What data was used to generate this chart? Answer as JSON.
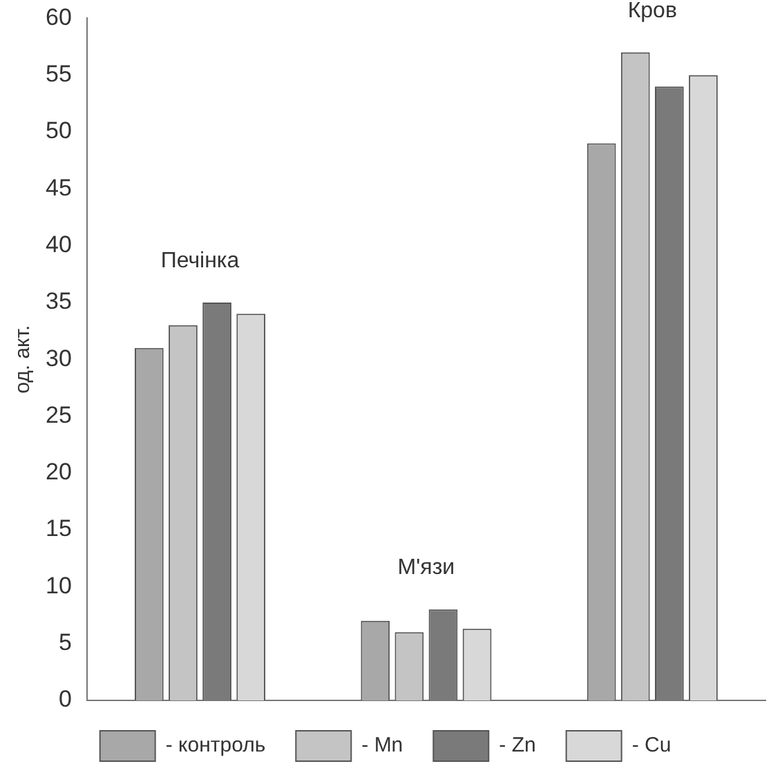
{
  "chart_data": {
    "type": "bar",
    "ylabel": "од. акт.",
    "categories": [
      "Печінка",
      "М'язи",
      "Кров"
    ],
    "series": [
      {
        "name": "- контроль",
        "color": "#a8a8a8",
        "values": [
          31,
          7,
          49
        ]
      },
      {
        "name": "- Mn",
        "color": "#c4c4c4",
        "values": [
          33,
          6,
          57
        ]
      },
      {
        "name": "- Zn",
        "color": "#7a7a7a",
        "values": [
          35,
          8,
          54
        ]
      },
      {
        "name": "- Cu",
        "color": "#d8d8d8",
        "values": [
          34,
          6.3,
          55
        ]
      }
    ],
    "ylim": [
      0,
      60
    ],
    "yticks": [
      0,
      5,
      10,
      15,
      20,
      25,
      30,
      35,
      40,
      45,
      50,
      55,
      60
    ],
    "grid": false,
    "legend": "bottom",
    "tick_labels": "y"
  }
}
